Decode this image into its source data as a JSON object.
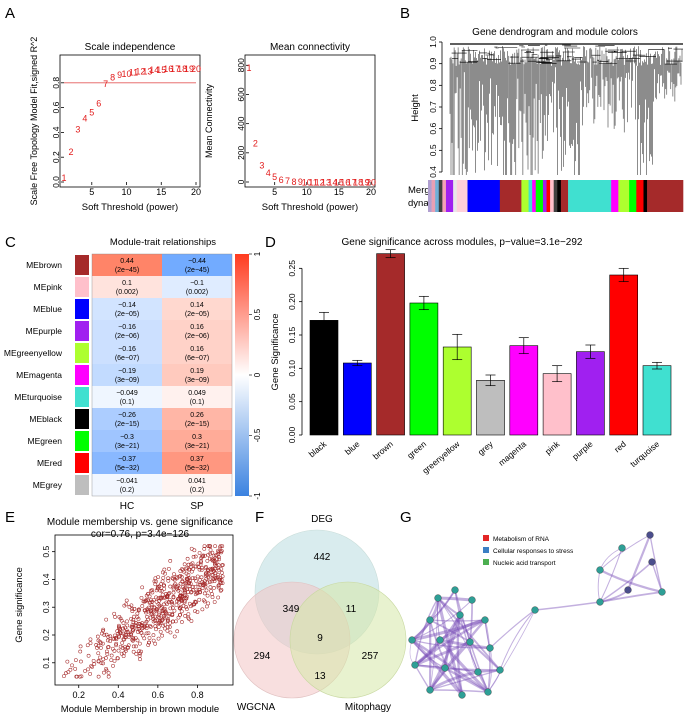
{
  "panel_letters": [
    "A",
    "B",
    "C",
    "D",
    "E",
    "F",
    "G"
  ],
  "chart_data": [
    {
      "id": "A1",
      "type": "scatter",
      "title": "Scale independence",
      "xlabel": "Soft Threshold (power)",
      "ylabel": "Scale Free Topology Model Fit,signed R^2",
      "xlim": [
        1,
        20
      ],
      "ylim": [
        0,
        1
      ],
      "xticks": [
        "5",
        "10",
        "15",
        "20"
      ],
      "yticks": [
        "0.0",
        "0.2",
        "0.4",
        "0.6",
        "0.8"
      ],
      "hline": 0.8,
      "points": [
        {
          "x": 1,
          "y": 0.04,
          "label": "1"
        },
        {
          "x": 2,
          "y": 0.25,
          "label": "2"
        },
        {
          "x": 3,
          "y": 0.43,
          "label": "3"
        },
        {
          "x": 4,
          "y": 0.52,
          "label": "4"
        },
        {
          "x": 5,
          "y": 0.57,
          "label": "5"
        },
        {
          "x": 6,
          "y": 0.64,
          "label": "6"
        },
        {
          "x": 7,
          "y": 0.8,
          "label": "7"
        },
        {
          "x": 8,
          "y": 0.85,
          "label": "8"
        },
        {
          "x": 9,
          "y": 0.87,
          "label": "9"
        },
        {
          "x": 10,
          "y": 0.88,
          "label": "10"
        },
        {
          "x": 11,
          "y": 0.89,
          "label": "11"
        },
        {
          "x": 12,
          "y": 0.9,
          "label": "12"
        },
        {
          "x": 13,
          "y": 0.9,
          "label": "13"
        },
        {
          "x": 14,
          "y": 0.91,
          "label": "14"
        },
        {
          "x": 15,
          "y": 0.91,
          "label": "15"
        },
        {
          "x": 16,
          "y": 0.92,
          "label": "16"
        },
        {
          "x": 17,
          "y": 0.92,
          "label": "17"
        },
        {
          "x": 18,
          "y": 0.92,
          "label": "18"
        },
        {
          "x": 19,
          "y": 0.92,
          "label": "19"
        },
        {
          "x": 20,
          "y": 0.92,
          "label": "20"
        }
      ]
    },
    {
      "id": "A2",
      "type": "scatter",
      "title": "Mean connectivity",
      "xlabel": "Soft Threshold (power)",
      "ylabel": "Mean Connectivity",
      "xlim": [
        1,
        20
      ],
      "ylim": [
        0,
        850
      ],
      "xticks": [
        "5",
        "10",
        "15",
        "20"
      ],
      "yticks": [
        "0",
        "200",
        "400",
        "600",
        "800"
      ],
      "points": [
        {
          "x": 1,
          "y": 790,
          "label": "1"
        },
        {
          "x": 2,
          "y": 270,
          "label": "2"
        },
        {
          "x": 3,
          "y": 120,
          "label": "3"
        },
        {
          "x": 4,
          "y": 70,
          "label": "4"
        },
        {
          "x": 5,
          "y": 40,
          "label": "5"
        },
        {
          "x": 6,
          "y": 20,
          "label": "6"
        },
        {
          "x": 7,
          "y": 13,
          "label": "7"
        },
        {
          "x": 8,
          "y": 8,
          "label": "8"
        },
        {
          "x": 9,
          "y": 6,
          "label": "9"
        },
        {
          "x": 10,
          "y": 5,
          "label": "10"
        },
        {
          "x": 11,
          "y": 4,
          "label": "11"
        },
        {
          "x": 12,
          "y": 3,
          "label": "12"
        },
        {
          "x": 13,
          "y": 3,
          "label": "13"
        },
        {
          "x": 14,
          "y": 3,
          "label": "14"
        },
        {
          "x": 15,
          "y": 3,
          "label": "15"
        },
        {
          "x": 16,
          "y": 2,
          "label": "16"
        },
        {
          "x": 17,
          "y": 2,
          "label": "17"
        },
        {
          "x": 18,
          "y": 2,
          "label": "18"
        },
        {
          "x": 19,
          "y": 2,
          "label": "19"
        },
        {
          "x": 20,
          "y": 2,
          "label": "20"
        }
      ]
    },
    {
      "id": "B",
      "type": "dendrogram",
      "title": "Gene dendrogram and module colors",
      "ylabel": "Height",
      "yticks": [
        "1.0",
        "0.9",
        "0.8",
        "0.7",
        "0.6",
        "0.5",
        "0.4"
      ],
      "color_bar_label": [
        "Merged",
        "dynamic"
      ],
      "color_bar": [
        {
          "color": "#b09fd0",
          "w": 1
        },
        {
          "color": "#e8a0b4",
          "w": 1
        },
        {
          "color": "#6fb0d8",
          "w": 1
        },
        {
          "color": "#404040",
          "w": 1
        },
        {
          "color": "#f5a0b8",
          "w": 1
        },
        {
          "color": "#a020f0",
          "w": 2
        },
        {
          "color": "#e8e8e8",
          "w": 1
        },
        {
          "color": "#ffd0da",
          "w": 3
        },
        {
          "color": "#0000ff",
          "w": 9
        },
        {
          "color": "#a52a2a",
          "w": 6
        },
        {
          "color": "#adff2f",
          "w": 2
        },
        {
          "color": "#40e0d0",
          "w": 1
        },
        {
          "color": "#ff00ff",
          "w": 1
        },
        {
          "color": "#00ff00",
          "w": 2
        },
        {
          "color": "#a020f0",
          "w": 1
        },
        {
          "color": "#ff0000",
          "w": 1
        },
        {
          "color": "#ffc0cb",
          "w": 1
        },
        {
          "color": "#404040",
          "w": 1
        },
        {
          "color": "#000000",
          "w": 1
        },
        {
          "color": "#a52a2a",
          "w": 2
        },
        {
          "color": "#40e0d0",
          "w": 12
        },
        {
          "color": "#ff00ff",
          "w": 2
        },
        {
          "color": "#adff2f",
          "w": 3
        },
        {
          "color": "#00ff00",
          "w": 2
        },
        {
          "color": "#ff0000",
          "w": 2
        },
        {
          "color": "#000000",
          "w": 1
        },
        {
          "color": "#a52a2a",
          "w": 10
        }
      ]
    },
    {
      "id": "C",
      "type": "heatmap",
      "title": "Module-trait relationships",
      "columns": [
        "HC",
        "SP"
      ],
      "colorbar_ticks": [
        "1",
        "0.5",
        "0",
        "-0.5",
        "-1"
      ],
      "rows": [
        {
          "name": "MEbrown",
          "color": "#a52a2a",
          "cells": [
            {
              "v": 0.44,
              "t": "0.44",
              "p": "(2e−45)"
            },
            {
              "v": -0.44,
              "t": "−0.44",
              "p": "(2e−45)"
            }
          ]
        },
        {
          "name": "MEpink",
          "color": "#ffc0cb",
          "cells": [
            {
              "v": 0.1,
              "t": "0.1",
              "p": "(0.002)"
            },
            {
              "v": -0.1,
              "t": "−0.1",
              "p": "(0.002)"
            }
          ]
        },
        {
          "name": "MEblue",
          "color": "#0000ff",
          "cells": [
            {
              "v": -0.14,
              "t": "−0.14",
              "p": "(2e−05)"
            },
            {
              "v": 0.14,
              "t": "0.14",
              "p": "(2e−05)"
            }
          ]
        },
        {
          "name": "MEpurple",
          "color": "#a020f0",
          "cells": [
            {
              "v": -0.16,
              "t": "−0.16",
              "p": "(2e−06)"
            },
            {
              "v": 0.16,
              "t": "0.16",
              "p": "(2e−06)"
            }
          ]
        },
        {
          "name": "MEgreenyellow",
          "color": "#adff2f",
          "cells": [
            {
              "v": -0.16,
              "t": "−0.16",
              "p": "(6e−07)"
            },
            {
              "v": 0.16,
              "t": "0.16",
              "p": "(6e−07)"
            }
          ]
        },
        {
          "name": "MEmagenta",
          "color": "#ff00ff",
          "cells": [
            {
              "v": -0.19,
              "t": "−0.19",
              "p": "(3e−09)"
            },
            {
              "v": 0.19,
              "t": "0.19",
              "p": "(3e−09)"
            }
          ]
        },
        {
          "name": "MEturquoise",
          "color": "#40e0d0",
          "cells": [
            {
              "v": -0.049,
              "t": "−0.049",
              "p": "(0.1)"
            },
            {
              "v": 0.049,
              "t": "0.049",
              "p": "(0.1)"
            }
          ]
        },
        {
          "name": "MEblack",
          "color": "#000000",
          "cells": [
            {
              "v": -0.26,
              "t": "−0.26",
              "p": "(2e−15)"
            },
            {
              "v": 0.26,
              "t": "0.26",
              "p": "(2e−15)"
            }
          ]
        },
        {
          "name": "MEgreen",
          "color": "#00ff00",
          "cells": [
            {
              "v": -0.3,
              "t": "−0.3",
              "p": "(3e−21)"
            },
            {
              "v": 0.3,
              "t": "0.3",
              "p": "(3e−21)"
            }
          ]
        },
        {
          "name": "MEred",
          "color": "#ff0000",
          "cells": [
            {
              "v": -0.37,
              "t": "−0.37",
              "p": "(5e−32)"
            },
            {
              "v": 0.37,
              "t": "0.37",
              "p": "(5e−32)"
            }
          ]
        },
        {
          "name": "MEgrey",
          "color": "#bebebe",
          "cells": [
            {
              "v": -0.041,
              "t": "−0.041",
              "p": "(0.2)"
            },
            {
              "v": 0.041,
              "t": "0.041",
              "p": "(0.2)"
            }
          ]
        }
      ]
    },
    {
      "id": "D",
      "type": "bar",
      "title": "Gene significance across modules, p−value=3.1e−292",
      "ylabel": "Gene Significance",
      "ylim": [
        0,
        0.27
      ],
      "yticks": [
        "0.00",
        "0.05",
        "0.10",
        "0.15",
        "0.20",
        "0.25"
      ],
      "categories": [
        "black",
        "blue",
        "brown",
        "green",
        "greenyellow",
        "grey",
        "magenta",
        "pink",
        "purple",
        "red",
        "turquoise"
      ],
      "values": [
        0.172,
        0.108,
        0.272,
        0.198,
        0.132,
        0.082,
        0.134,
        0.092,
        0.125,
        0.24,
        0.104
      ],
      "errors": [
        0.012,
        0.004,
        0.006,
        0.01,
        0.019,
        0.008,
        0.012,
        0.012,
        0.01,
        0.01,
        0.005
      ],
      "colors": [
        "#000000",
        "#0000ff",
        "#a52a2a",
        "#00ff00",
        "#adff2f",
        "#bebebe",
        "#ff00ff",
        "#ffc0cb",
        "#a020f0",
        "#ff0000",
        "#40e0d0"
      ]
    },
    {
      "id": "E",
      "type": "scatter",
      "title": "Module membership vs. gene significance",
      "subtitle": "cor=0.76, p=3.4e−126",
      "xlabel": "Module Membership in brown module",
      "ylabel": "Gene significance",
      "xlim": [
        0.08,
        0.98
      ],
      "ylim": [
        0.02,
        0.56
      ],
      "xticks": [
        "0.2",
        "0.4",
        "0.6",
        "0.8"
      ],
      "yticks": [
        "0.1",
        "0.2",
        "0.3",
        "0.4",
        "0.5"
      ],
      "n_points": 650,
      "trend": {
        "slope": 0.52,
        "intercept": -0.02
      }
    }
  ],
  "venn": {
    "sets": [
      {
        "name": "DEG",
        "color": "#b9dde0"
      },
      {
        "name": "WGCNA",
        "color": "#f2c4c4"
      },
      {
        "name": "Mitophagy",
        "color": "#d5e8a8"
      }
    ],
    "counts": {
      "deg_only": "442",
      "wgcna_only": "294",
      "mito_only": "257",
      "deg_wgcna": "349",
      "deg_mito": "11",
      "wgcna_mito": "13",
      "all": "9"
    }
  },
  "network": {
    "legend": [
      {
        "label": "Metabolism of RNA",
        "color": "#e32626"
      },
      {
        "label": "Cellular responses to stress",
        "color": "#3b7fc4"
      },
      {
        "label": "Nucleic acid transport",
        "color": "#4caf50"
      }
    ],
    "edge_color": "#7b4fb8",
    "node_colors": [
      "#2e9f96",
      "#4b4e8c"
    ]
  }
}
